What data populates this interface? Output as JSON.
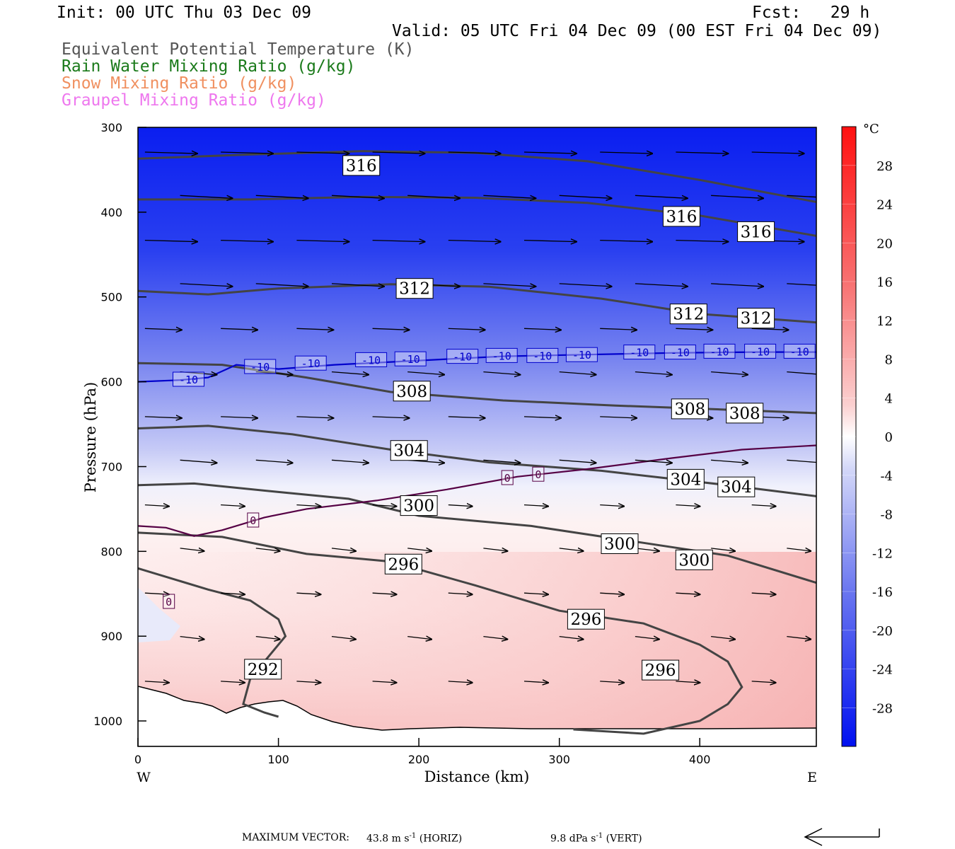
{
  "header": {
    "init": "Init: 00 UTC Thu 03 Dec 09",
    "fcst": "Fcst:   29 h",
    "valid": "Valid: 05 UTC Fri 04 Dec 09 (00 EST Fri 04 Dec 09)"
  },
  "legend": [
    {
      "text": "Equivalent Potential Temperature (K)",
      "color": "#555555"
    },
    {
      "text": "Rain Water Mixing Ratio (g/kg)",
      "color": "#1a7a1a"
    },
    {
      "text": "Snow Mixing Ratio (g/kg)",
      "color": "#f09060"
    },
    {
      "text": "Graupel Mixing Ratio (g/kg)",
      "color": "#ee77ee"
    }
  ],
  "footer": {
    "max_vector_label": "MAXIMUM VECTOR:",
    "horiz": "43.8 m s",
    "horiz_exp": "-1",
    "horiz_tag": "(HORIZ)",
    "vert": "9.8 dPa s",
    "vert_exp": "-1",
    "vert_tag": "(VERT)"
  },
  "chart_data": {
    "type": "cross-section contour",
    "xlabel": "Distance (km)",
    "ylabel": "Pressure (hPa)",
    "xlim": [
      0,
      483
    ],
    "ylim": [
      1030,
      300
    ],
    "x_ticks": [
      0,
      100,
      200,
      300,
      400
    ],
    "y_ticks": [
      300,
      400,
      500,
      600,
      700,
      800,
      900,
      1000
    ],
    "x_end_labels": {
      "left": "W",
      "right": "E"
    },
    "colorbar": {
      "unit": "°C",
      "tick_labels": [
        28,
        24,
        20,
        16,
        12,
        8,
        4,
        0,
        -4,
        -8,
        -12,
        -16,
        -20,
        -24,
        -28
      ],
      "range": [
        -32,
        32
      ]
    },
    "theta_e_contours": [
      {
        "value": 316,
        "x": [
          0,
          80,
          160,
          240,
          320,
          400,
          483
        ],
        "p": [
          337,
          332,
          328,
          330,
          340,
          362,
          388
        ]
      },
      {
        "value": 316,
        "x": [
          0,
          80,
          160,
          240,
          320,
          400,
          483
        ],
        "p": [
          385,
          385,
          382,
          383,
          389,
          404,
          428
        ]
      },
      {
        "value": 312,
        "x": [
          0,
          50,
          100,
          180,
          250,
          330,
          400,
          483
        ],
        "p": [
          493,
          497,
          490,
          485,
          488,
          502,
          520,
          530
        ]
      },
      {
        "value": 308,
        "x": [
          0,
          60,
          120,
          180,
          260,
          340,
          420,
          483
        ],
        "p": [
          578,
          580,
          595,
          612,
          622,
          628,
          633,
          637
        ]
      },
      {
        "value": 304,
        "x": [
          0,
          50,
          110,
          180,
          250,
          330,
          420,
          483
        ],
        "p": [
          655,
          652,
          662,
          680,
          695,
          705,
          722,
          735
        ]
      },
      {
        "value": 300,
        "x": [
          0,
          40,
          100,
          150,
          200,
          280,
          360,
          420,
          483
        ],
        "p": [
          722,
          720,
          730,
          738,
          758,
          770,
          790,
          805,
          837
        ]
      },
      {
        "value": 296,
        "x": [
          0,
          60,
          120,
          180,
          240,
          300,
          360,
          400,
          420,
          430,
          420,
          400,
          360,
          310
        ],
        "p": [
          778,
          783,
          803,
          812,
          840,
          870,
          885,
          910,
          930,
          960,
          980,
          1000,
          1015,
          1010
        ]
      },
      {
        "value": 292,
        "x": [
          0,
          50,
          80,
          100,
          105,
          95,
          80,
          75,
          90,
          100
        ],
        "p": [
          820,
          845,
          858,
          880,
          900,
          920,
          950,
          980,
          990,
          995
        ]
      }
    ],
    "theta_e_labels": [
      {
        "text": "316",
        "x": 159,
        "p": 345
      },
      {
        "text": "316",
        "x": 387,
        "p": 405
      },
      {
        "text": "316",
        "x": 440,
        "p": 423
      },
      {
        "text": "312",
        "x": 197,
        "p": 490
      },
      {
        "text": "312",
        "x": 392,
        "p": 520
      },
      {
        "text": "312",
        "x": 440,
        "p": 525
      },
      {
        "text": "308",
        "x": 195,
        "p": 611
      },
      {
        "text": "308",
        "x": 393,
        "p": 632
      },
      {
        "text": "308",
        "x": 432,
        "p": 637
      },
      {
        "text": "304",
        "x": 193,
        "p": 681
      },
      {
        "text": "304",
        "x": 390,
        "p": 715
      },
      {
        "text": "304",
        "x": 426,
        "p": 724
      },
      {
        "text": "300",
        "x": 200,
        "p": 746
      },
      {
        "text": "300",
        "x": 343,
        "p": 791
      },
      {
        "text": "300",
        "x": 396,
        "p": 810
      },
      {
        "text": "296",
        "x": 189,
        "p": 815
      },
      {
        "text": "296",
        "x": 319,
        "p": 880
      },
      {
        "text": "296",
        "x": 372,
        "p": 940
      },
      {
        "text": "292",
        "x": 89,
        "p": 939
      }
    ],
    "isotherms": [
      {
        "value": -10,
        "color": "#0000cc",
        "x": [
          0,
          30,
          50,
          70,
          100,
          140,
          200,
          260,
          320,
          380,
          440,
          483
        ],
        "p": [
          600,
          598,
          595,
          580,
          585,
          580,
          575,
          570,
          568,
          566,
          565,
          565
        ]
      },
      {
        "value": 0,
        "color": "#550044",
        "x": [
          0,
          20,
          40,
          60,
          90,
          120,
          170,
          220,
          270,
          320,
          380,
          430,
          483
        ],
        "p": [
          770,
          772,
          782,
          775,
          760,
          750,
          740,
          727,
          712,
          703,
          690,
          680,
          675
        ]
      }
    ],
    "isotherm_labels": [
      {
        "text": "-10",
        "x": 36,
        "p": 597,
        "color": "#0000cc"
      },
      {
        "text": "-10",
        "x": 87,
        "p": 582,
        "color": "#0000cc"
      },
      {
        "text": "-10",
        "x": 123,
        "p": 578,
        "color": "#0000cc"
      },
      {
        "text": "-10",
        "x": 166,
        "p": 574,
        "color": "#0000cc"
      },
      {
        "text": "-10",
        "x": 194,
        "p": 573,
        "color": "#0000cc"
      },
      {
        "text": "-10",
        "x": 231,
        "p": 570,
        "color": "#0000cc"
      },
      {
        "text": "-10",
        "x": 259,
        "p": 569,
        "color": "#0000cc"
      },
      {
        "text": "-10",
        "x": 288,
        "p": 569,
        "color": "#0000cc"
      },
      {
        "text": "-10",
        "x": 316,
        "p": 568,
        "color": "#0000cc"
      },
      {
        "text": "-10",
        "x": 357,
        "p": 565,
        "color": "#0000cc"
      },
      {
        "text": "-10",
        "x": 386,
        "p": 565,
        "color": "#0000cc"
      },
      {
        "text": "-10",
        "x": 414,
        "p": 564,
        "color": "#0000cc"
      },
      {
        "text": "-10",
        "x": 443,
        "p": 564,
        "color": "#0000cc"
      },
      {
        "text": "-10",
        "x": 471,
        "p": 564,
        "color": "#0000cc"
      },
      {
        "text": "0",
        "x": 82,
        "p": 763,
        "color": "#550044"
      },
      {
        "text": "0",
        "x": 22,
        "p": 859,
        "color": "#550044"
      },
      {
        "text": "0",
        "x": 263,
        "p": 713,
        "color": "#550044"
      },
      {
        "text": "0",
        "x": 285,
        "p": 709,
        "color": "#550044"
      }
    ]
  }
}
